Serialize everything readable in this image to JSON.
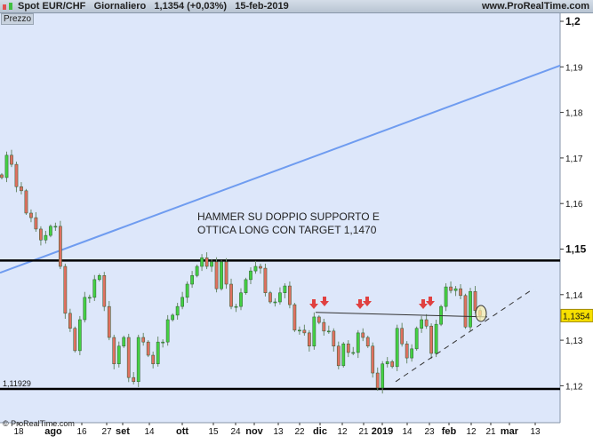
{
  "header": {
    "instrument": "Spot EUR/CHF",
    "timeframe": "Giornaliero",
    "last": "1,1354 (+0,03%)",
    "date": "15-feb-2019",
    "site": "www.ProRealTime.com"
  },
  "panel_label": "Prezzo",
  "copyright": "© ProRealTime.com",
  "annotation": {
    "line1": "HAMMER SU DOPPIO SUPPORTO E",
    "line2": "OTTICA LONG CON TARGET 1,1470"
  },
  "chart_data": {
    "type": "candlestick",
    "ylim": [
      1.1115,
      1.2015
    ],
    "y_ticks": [
      "1,2",
      "1,19",
      "1,18",
      "1,17",
      "1,16",
      "1,15",
      "1,14",
      "1,13",
      "1,12"
    ],
    "y_tick_values": [
      1.2,
      1.19,
      1.18,
      1.17,
      1.16,
      1.15,
      1.14,
      1.13,
      1.12
    ],
    "x_tick_labels": [
      "18",
      "ago",
      "16",
      "27",
      "set",
      "14",
      "ott",
      "15",
      "24",
      "nov",
      "13",
      "22",
      "dic",
      "12",
      "21",
      "2019",
      "14",
      "23",
      "feb",
      "12",
      "21",
      "mar",
      "13"
    ],
    "x_tick_bold": [
      "ago",
      "set",
      "ott",
      "nov",
      "dic",
      "2019",
      "feb",
      "mar"
    ],
    "close": [
      1.1657,
      1.1706,
      1.1686,
      1.1637,
      1.1628,
      1.1579,
      1.1569,
      1.1544,
      1.152,
      1.153,
      1.155,
      1.155,
      1.1462,
      1.1359,
      1.1326,
      1.1277,
      1.1345,
      1.1394,
      1.1394,
      1.1433,
      1.1442,
      1.1374,
      1.1306,
      1.1248,
      1.1287,
      1.1306,
      1.1218,
      1.1209,
      1.1306,
      1.1296,
      1.1267,
      1.1248,
      1.1296,
      1.1296,
      1.1345,
      1.1355,
      1.1374,
      1.1394,
      1.1423,
      1.1442,
      1.1462,
      1.1481,
      1.1462,
      1.1472,
      1.1413,
      1.1472,
      1.1423,
      1.1374,
      1.1374,
      1.1404,
      1.1433,
      1.1452,
      1.1462,
      1.1458,
      1.1404,
      1.1384,
      1.1384,
      1.1404,
      1.1419,
      1.1378,
      1.1322,
      1.1322,
      1.1316,
      1.1287,
      1.1351,
      1.1339,
      1.132,
      1.132,
      1.1287,
      1.1244,
      1.1292,
      1.1273,
      1.1273,
      1.1316,
      1.1306,
      1.1287,
      1.1228,
      1.1195,
      1.1248,
      1.1253,
      1.1242,
      1.1326,
      1.1292,
      1.1261,
      1.1281,
      1.1326,
      1.1345,
      1.1331,
      1.1271,
      1.1335,
      1.1374,
      1.1417,
      1.1409,
      1.1413,
      1.1398,
      1.1329,
      1.1407,
      1.1365,
      1.1354
    ],
    "last_price_label": "1,1354",
    "resistance": 1.1475,
    "support": 1.11929,
    "support_label": "1,11929",
    "trendline_blue": {
      "from": 1.1448,
      "to": 1.1903
    },
    "neckline": {
      "from": 1.1361,
      "to": 1.1351
    },
    "rising_dashed": {
      "from": 1.1209,
      "to": 1.1413
    },
    "colors": {
      "up": "#44d044",
      "down": "#e07060",
      "background": "#dde7fa",
      "trendline": "#6f9cf0",
      "last_price": "#f7e000"
    }
  }
}
